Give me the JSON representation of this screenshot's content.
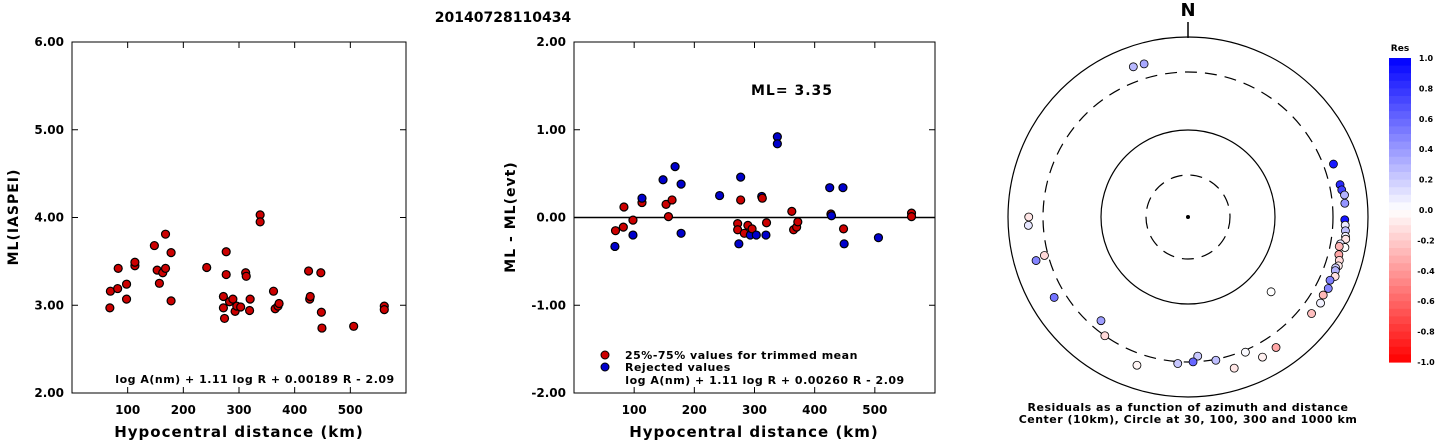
{
  "title": "20140728110434",
  "colors": {
    "red": "#cc0000",
    "blue": "#0000cc",
    "axis": "#000000"
  },
  "chart_data": [
    {
      "id": "left",
      "type": "scatter",
      "ylabel": "ML(IASPEI)",
      "xlabel": "Hypocentral distance (km)",
      "formula": "log A(nm) + 1.11 log R + 0.00189 R - 2.09",
      "xlim": [
        0,
        600
      ],
      "ylim": [
        2,
        6
      ],
      "xticks": [
        "100",
        "200",
        "300",
        "400",
        "500"
      ],
      "xtick_values": [
        100,
        200,
        300,
        400,
        500
      ],
      "yticks": [
        "2.00",
        "3.00",
        "4.00",
        "5.00",
        "6.00"
      ],
      "ytick_values": [
        2,
        3,
        4,
        5,
        6
      ],
      "points": [
        [
          68,
          2.97
        ],
        [
          69,
          3.16
        ],
        [
          82,
          3.19
        ],
        [
          83,
          3.42
        ],
        [
          98,
          3.07
        ],
        [
          98,
          3.24
        ],
        [
          113,
          3.45
        ],
        [
          113,
          3.49
        ],
        [
          148,
          3.68
        ],
        [
          153,
          3.4
        ],
        [
          157,
          3.25
        ],
        [
          163,
          3.37
        ],
        [
          168,
          3.81
        ],
        [
          168,
          3.42
        ],
        [
          178,
          3.6
        ],
        [
          178,
          3.05
        ],
        [
          242,
          3.43
        ],
        [
          272,
          3.1
        ],
        [
          272,
          2.97
        ],
        [
          274,
          2.85
        ],
        [
          277,
          3.61
        ],
        [
          277,
          3.35
        ],
        [
          283,
          3.04
        ],
        [
          289,
          3.07
        ],
        [
          293,
          2.93
        ],
        [
          296,
          2.99
        ],
        [
          303,
          2.98
        ],
        [
          312,
          3.37
        ],
        [
          313,
          3.33
        ],
        [
          319,
          2.94
        ],
        [
          320,
          3.07
        ],
        [
          338,
          4.03
        ],
        [
          338,
          3.95
        ],
        [
          362,
          3.16
        ],
        [
          365,
          2.96
        ],
        [
          370,
          2.99
        ],
        [
          372,
          3.02
        ],
        [
          425,
          3.39
        ],
        [
          427,
          3.07
        ],
        [
          428,
          3.1
        ],
        [
          447,
          3.37
        ],
        [
          448,
          2.92
        ],
        [
          449,
          2.74
        ],
        [
          506,
          2.76
        ],
        [
          561,
          2.99
        ],
        [
          561,
          2.95
        ]
      ]
    },
    {
      "id": "mid",
      "type": "scatter",
      "ylabel": "ML - ML(evt)",
      "xlabel": "Hypocentral distance (km)",
      "formula": "log A(nm) + 1.11 log R + 0.00260 R - 2.09",
      "ml_label": "ML= 3.35",
      "legend": {
        "red": "25%-75% values for trimmed mean",
        "blue": "Rejected values",
        "position": "bottom-left"
      },
      "xlim": [
        0,
        600
      ],
      "ylim": [
        -2,
        2
      ],
      "xticks": [
        "100",
        "200",
        "300",
        "400",
        "500"
      ],
      "xtick_values": [
        100,
        200,
        300,
        400,
        500
      ],
      "yticks": [
        "-2.00",
        "-1.00",
        "0.00",
        "1.00",
        "2.00"
      ],
      "ytick_values": [
        -2,
        -1,
        0,
        1,
        2
      ],
      "zero_line": 0,
      "points": [
        [
          68,
          -0.33,
          "b"
        ],
        [
          69,
          -0.15,
          "r"
        ],
        [
          82,
          -0.11,
          "r"
        ],
        [
          83,
          0.12,
          "r"
        ],
        [
          98,
          -0.2,
          "b"
        ],
        [
          98,
          -0.03,
          "r"
        ],
        [
          113,
          0.17,
          "r"
        ],
        [
          113,
          0.22,
          "b"
        ],
        [
          148,
          0.43,
          "b"
        ],
        [
          153,
          0.15,
          "r"
        ],
        [
          157,
          0.01,
          "r"
        ],
        [
          163,
          0.2,
          "r"
        ],
        [
          168,
          0.58,
          "b"
        ],
        [
          178,
          0.38,
          "b"
        ],
        [
          178,
          -0.18,
          "b"
        ],
        [
          242,
          0.25,
          "b"
        ],
        [
          272,
          -0.07,
          "r"
        ],
        [
          272,
          -0.14,
          "r"
        ],
        [
          274,
          -0.3,
          "b"
        ],
        [
          277,
          0.46,
          "b"
        ],
        [
          277,
          0.2,
          "r"
        ],
        [
          283,
          -0.18,
          "r"
        ],
        [
          289,
          -0.09,
          "r"
        ],
        [
          293,
          -0.2,
          "b"
        ],
        [
          296,
          -0.13,
          "r"
        ],
        [
          303,
          -0.2,
          "b"
        ],
        [
          312,
          0.24,
          "b"
        ],
        [
          313,
          0.22,
          "r"
        ],
        [
          319,
          -0.2,
          "b"
        ],
        [
          320,
          -0.06,
          "r"
        ],
        [
          338,
          0.92,
          "b"
        ],
        [
          338,
          0.84,
          "b"
        ],
        [
          362,
          0.07,
          "r"
        ],
        [
          365,
          -0.14,
          "r"
        ],
        [
          370,
          -0.11,
          "r"
        ],
        [
          372,
          -0.05,
          "r"
        ],
        [
          425,
          0.34,
          "b"
        ],
        [
          427,
          0.04,
          "r"
        ],
        [
          428,
          0.02,
          "b"
        ],
        [
          447,
          0.34,
          "b"
        ],
        [
          448,
          -0.13,
          "r"
        ],
        [
          449,
          -0.3,
          "b"
        ],
        [
          506,
          -0.23,
          "b"
        ],
        [
          561,
          0.05,
          "r"
        ],
        [
          561,
          0.01,
          "r"
        ]
      ]
    },
    {
      "id": "polar",
      "type": "polar-scatter",
      "north_label": "N",
      "caption1": "Residuals as a function of azimuth and distance",
      "caption2": "Center (10km), Circle at 30, 100, 300 and 1000 km",
      "rings_km": [
        30,
        100,
        300,
        1000
      ],
      "ring_styles": [
        "dashed",
        "solid",
        "dashed",
        "solid"
      ],
      "colorbar": {
        "title": "Res",
        "min": -1.0,
        "max": 1.0,
        "labels": [
          "1.0",
          "0.8",
          "0.6",
          "0.4",
          "0.2",
          "0.0",
          "-0.2",
          "-0.4",
          "-0.6",
          "-0.8",
          "-1.0"
        ],
        "label_values": [
          1.0,
          0.8,
          0.6,
          0.4,
          0.2,
          0.0,
          -0.2,
          -0.4,
          -0.6,
          -0.8,
          -1.0
        ]
      },
      "points": [
        [
          70,
          0.9
        ],
        [
          78,
          0.84
        ],
        [
          80,
          0.75
        ],
        [
          82,
          0.3
        ],
        [
          85,
          0.42
        ],
        [
          91,
          0.92
        ],
        [
          93,
          0.08
        ],
        [
          95,
          0.25
        ],
        [
          97,
          0.05
        ],
        [
          98,
          -0.1
        ],
        [
          100,
          0.1
        ],
        [
          101,
          0.0
        ],
        [
          101,
          -0.3
        ],
        [
          104,
          -0.35
        ],
        [
          106,
          -0.15
        ],
        [
          108,
          -0.08
        ],
        [
          109,
          0.2
        ],
        [
          110,
          0.3
        ],
        [
          112,
          -0.12
        ],
        [
          114,
          0.5
        ],
        [
          117,
          0.48
        ],
        [
          120,
          -0.28
        ],
        [
          123,
          0.05
        ],
        [
          128,
          -0.25
        ],
        [
          132,
          0.0
        ],
        [
          146,
          -0.35
        ],
        [
          152,
          -0.06
        ],
        [
          157,
          0.02
        ],
        [
          163,
          -0.1
        ],
        [
          169,
          0.25
        ],
        [
          176,
          0.21
        ],
        [
          178,
          0.6
        ],
        [
          184,
          0.22
        ],
        [
          199,
          -0.04
        ],
        [
          215,
          -0.15
        ],
        [
          220,
          0.38
        ],
        [
          239,
          0.55
        ],
        [
          254,
          0.48
        ],
        [
          255,
          -0.15
        ],
        [
          267,
          0.1
        ],
        [
          270,
          -0.1
        ],
        [
          340,
          0.28
        ],
        [
          344,
          0.34
        ]
      ],
      "points_dist_km": [
        420,
        430,
        440,
        470,
        460,
        450,
        460,
        470,
        480,
        490,
        420,
        500,
        410,
        430,
        460,
        470,
        440,
        450,
        480,
        430,
        460,
        440,
        470,
        450,
        160,
        460,
        480,
        320,
        470,
        310,
        270,
        300,
        320,
        450,
        300,
        250,
        440,
        470,
        340,
        500,
        490,
        500,
        490
      ]
    }
  ]
}
